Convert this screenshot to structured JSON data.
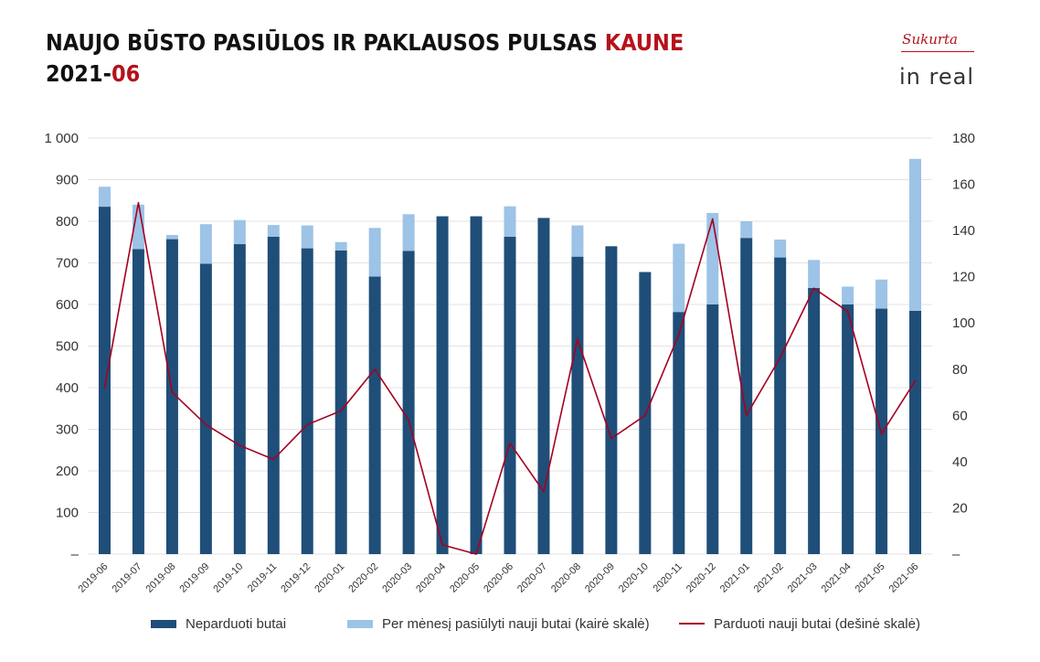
{
  "header": {
    "title_part1": "NAUJO BŪSTO PASIŪLOS IR PAKLAUSOS PULSAS ",
    "title_part2": "KAUNE",
    "subtitle_part1": "2021-",
    "subtitle_part2": "06"
  },
  "logo": {
    "top_text": "Sukurta",
    "brand": "in real"
  },
  "colors": {
    "dark_bar": "#1f4e79",
    "light_bar": "#9dc3e6",
    "line": "#a50021",
    "accent": "#b5121b",
    "grid": "#e3e3e3"
  },
  "chart_data": {
    "type": "bar",
    "stacked": true,
    "categories": [
      "2019-06",
      "2019-07",
      "2019-08",
      "2019-09",
      "2019-10",
      "2019-11",
      "2019-12",
      "2020-01",
      "2020-02",
      "2020-03",
      "2020-04",
      "2020-05",
      "2020-06",
      "2020-07",
      "2020-08",
      "2020-09",
      "2020-10",
      "2020-11",
      "2020-12",
      "2021-01",
      "2021-02",
      "2021-03",
      "2021-04",
      "2021-05",
      "2021-06"
    ],
    "series": [
      {
        "name": "Neparduoti butai",
        "axis": "left",
        "kind": "bar",
        "values": [
          835,
          733,
          757,
          698,
          745,
          763,
          735,
          730,
          667,
          729,
          812,
          812,
          763,
          808,
          715,
          740,
          678,
          582,
          600,
          760,
          713,
          640,
          600,
          590,
          585
        ]
      },
      {
        "name": "Per mėnesį pasiūlyti nauji butai (kairė skalė)",
        "axis": "left",
        "kind": "bar",
        "values": [
          48,
          107,
          10,
          95,
          58,
          28,
          55,
          20,
          117,
          88,
          0,
          0,
          73,
          0,
          75,
          0,
          0,
          164,
          220,
          40,
          43,
          67,
          43,
          70,
          365
        ]
      },
      {
        "name": "Parduoti nauji butai (dešinė skalė)",
        "axis": "right",
        "kind": "line",
        "values": [
          72,
          152,
          70,
          56,
          47,
          41,
          56,
          62,
          80,
          58,
          4,
          0,
          48,
          27,
          93,
          50,
          60,
          95,
          145,
          60,
          85,
          115,
          105,
          52,
          75
        ]
      }
    ],
    "y_left": {
      "min": 0,
      "max": 1000,
      "ticks": [
        "–",
        "100",
        "200",
        "300",
        "400",
        "500",
        "600",
        "700",
        "800",
        "900",
        "1 000"
      ]
    },
    "y_right": {
      "min": 0,
      "max": 180,
      "ticks": [
        "–",
        "20",
        "40",
        "60",
        "80",
        "100",
        "120",
        "140",
        "160",
        "180"
      ]
    },
    "grid": true,
    "legend_position": "bottom"
  }
}
